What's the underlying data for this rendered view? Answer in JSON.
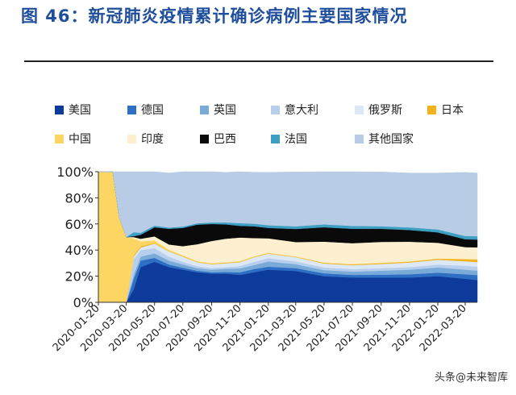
{
  "title": "图 46：新冠肺炎疫情累计确诊病例主要国家情况",
  "watermark": "头条@未来智库",
  "chart_data": {
    "type": "area",
    "stacked": true,
    "percent": true,
    "ylim": [
      0,
      100
    ],
    "yticks": [
      "0%",
      "20%",
      "40%",
      "60%",
      "80%",
      "100%"
    ],
    "xtick_labels": [
      "2020-01-20",
      "2020-03-20",
      "2020-05-20",
      "2020-07-20",
      "2020-09-20",
      "2020-11-20",
      "2021-01-20",
      "2021-03-20",
      "2021-05-20",
      "2021-07-20",
      "2021-09-20",
      "2021-11-20",
      "2022-01-20",
      "2022-03-20"
    ],
    "x": [
      "2020-01-20",
      "2020-02-20",
      "2020-03-05",
      "2020-03-20",
      "2020-04-05",
      "2020-04-20",
      "2020-05-20",
      "2020-06-20",
      "2020-07-20",
      "2020-08-20",
      "2020-09-20",
      "2020-10-20",
      "2020-11-20",
      "2020-12-20",
      "2021-01-20",
      "2021-03-20",
      "2021-05-20",
      "2021-07-20",
      "2021-09-20",
      "2021-11-20",
      "2022-01-20",
      "2022-03-20",
      "2022-04-15"
    ],
    "legend_position": "top",
    "series": [
      {
        "name": "美国",
        "color": "#0d3a9b",
        "values": [
          0,
          0,
          0,
          0,
          10,
          27,
          31,
          27,
          25,
          23,
          22,
          22,
          21,
          23,
          25,
          24,
          20,
          19,
          19,
          19,
          20,
          18,
          17
        ]
      },
      {
        "name": "德国",
        "color": "#2e6fc4",
        "values": [
          0,
          0,
          0,
          0,
          8,
          5,
          3,
          2,
          1.5,
          1.2,
          1,
          1.2,
          2,
          2.5,
          2.3,
          2.2,
          2.2,
          2,
          2.2,
          2.5,
          2.7,
          3.5,
          3.8
        ]
      },
      {
        "name": "英国",
        "color": "#7aaad8",
        "values": [
          0,
          0,
          0,
          0,
          3,
          3,
          3.5,
          3,
          2.5,
          2,
          2,
          2.5,
          3,
          3,
          4,
          3,
          2.5,
          2.5,
          3,
          3.5,
          4,
          3.5,
          3.5
        ]
      },
      {
        "name": "意大利",
        "color": "#b7cfec",
        "values": [
          0,
          0,
          0,
          0,
          12,
          5,
          4,
          3,
          2,
          1.5,
          1.2,
          1.2,
          1.8,
          2.5,
          2.5,
          2.2,
          2,
          2,
          2,
          2,
          2.2,
          3,
          3
        ]
      },
      {
        "name": "俄罗斯",
        "color": "#dce8f6",
        "values": [
          0,
          0,
          0,
          0,
          2,
          2,
          3.5,
          4,
          4,
          3,
          3,
          3,
          3,
          3.5,
          3.5,
          3.2,
          3,
          3,
          3.2,
          3.5,
          3.7,
          3.5,
          3.5
        ]
      },
      {
        "name": "日本",
        "color": "#f2b21b",
        "values": [
          0,
          0,
          0,
          0,
          1,
          0.7,
          0.5,
          0.3,
          0.3,
          0.3,
          0.3,
          0.3,
          0.3,
          0.3,
          0.3,
          0.3,
          0.5,
          0.5,
          0.6,
          0.6,
          0.7,
          1.5,
          2
        ]
      },
      {
        "name": "中国",
        "color": "#fcd562",
        "values": [
          100,
          100,
          65,
          50,
          13,
          4,
          2,
          1,
          0.7,
          0.5,
          0.5,
          0.5,
          0.5,
          0.4,
          0.4,
          0.3,
          0.3,
          0.3,
          0.3,
          0.3,
          0.3,
          0.3,
          0.3
        ]
      },
      {
        "name": "印度",
        "color": "#fdf0d0",
        "values": [
          0,
          0,
          0,
          0,
          1,
          2,
          3,
          4,
          7,
          13,
          17,
          18,
          18,
          14,
          11,
          11,
          16,
          16,
          16,
          15,
          12,
          9,
          9
        ]
      },
      {
        "name": "巴西",
        "color": "#0a0a0a",
        "values": [
          0,
          0,
          0,
          0,
          0.7,
          3,
          7,
          12,
          14,
          15,
          13,
          11,
          9,
          9,
          8,
          10,
          11,
          11,
          10,
          9,
          8,
          6,
          6
        ]
      },
      {
        "name": "法国",
        "color": "#3d9fc2",
        "values": [
          0,
          0,
          0,
          0,
          3,
          1.5,
          1.2,
          1,
          1,
          1,
          1.2,
          1.5,
          2,
          2,
          2,
          2,
          2.2,
          2.2,
          2,
          2,
          2.2,
          2.5,
          2.5
        ]
      },
      {
        "name": "其他国家",
        "color": "#b8cce6",
        "values": [
          0,
          0,
          35,
          50,
          46.3,
          46.8,
          41.3,
          41.7,
          42,
          39.5,
          38.8,
          38.3,
          39.4,
          39.4,
          40.5,
          41.6,
          40.3,
          41.5,
          41.5,
          41.6,
          43.2,
          48.7,
          48.4
        ]
      }
    ]
  }
}
